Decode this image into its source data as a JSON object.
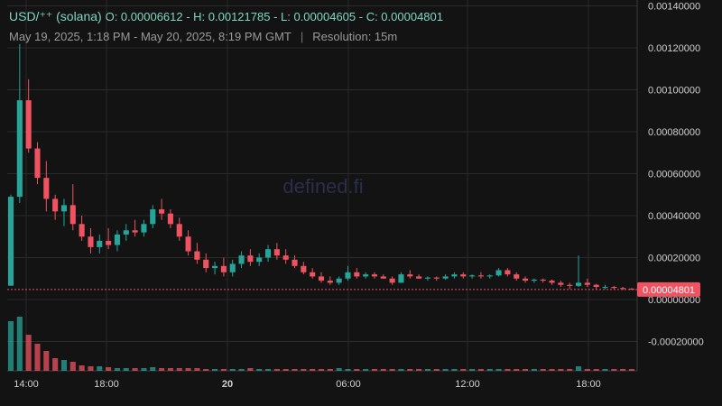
{
  "header": {
    "symbol": "USD/⁺⁺ (solana)",
    "ohlc": "O: 0.00006612 - H: 0.00121785 - L: 0.00004605 - C: 0.00004801",
    "date_range": "May 19, 2025, 1:18 PM - May 20, 2025, 8:19 PM GMT",
    "separator": "|",
    "resolution": "Resolution: 15m"
  },
  "watermark": "defined.fi",
  "colors": {
    "up": "#26a69a",
    "down": "#ef5361",
    "background": "#131313",
    "grid": "#2a2a2a",
    "axis_text": "#d0d0d0",
    "price_label_bg": "#ef5361"
  },
  "chart_data": {
    "type": "candlestick",
    "x_ticks": [
      "14:00",
      "18:00",
      "20",
      "06:00",
      "12:00",
      "18:00"
    ],
    "y_ticks": [
      "0.00140000",
      "0.00120000",
      "0.00100000",
      "0.00080000",
      "0.00060000",
      "0.00040000",
      "0.00020000",
      "0.00000000",
      "-0.00020000"
    ],
    "ylim": [
      -0.0003,
      0.00145
    ],
    "current_price": 4.801e-05,
    "current_price_label": "0.00004801",
    "open": 6.612e-05,
    "high": 0.00121785,
    "low": 4.605e-05,
    "close": 4.801e-05,
    "resolution_minutes": 15,
    "start": "2025-05-19 13:18",
    "end": "2025-05-20 20:19",
    "candles_ohlc": [
      [
        6.6e-05,
        0.0005,
        6.6e-05,
        0.00049
      ],
      [
        0.00049,
        0.00121785,
        0.00046,
        0.00095
      ],
      [
        0.00095,
        0.00105,
        0.0007,
        0.00072
      ],
      [
        0.00072,
        0.00075,
        0.00055,
        0.00058
      ],
      [
        0.00058,
        0.00066,
        0.00042,
        0.00048
      ],
      [
        0.00048,
        0.0005,
        0.00038,
        0.00042
      ],
      [
        0.00042,
        0.00048,
        0.00035,
        0.00045
      ],
      [
        0.00045,
        0.00055,
        0.00033,
        0.00036
      ],
      [
        0.00036,
        0.0004,
        0.00028,
        0.0003
      ],
      [
        0.0003,
        0.00034,
        0.00022,
        0.00025
      ],
      [
        0.00025,
        0.00031,
        0.00022,
        0.00028
      ],
      [
        0.00028,
        0.00034,
        0.00024,
        0.00026
      ],
      [
        0.00026,
        0.00033,
        0.00023,
        0.00031
      ],
      [
        0.00031,
        0.00036,
        0.00028,
        0.00033
      ],
      [
        0.00033,
        0.00038,
        0.0003,
        0.00032
      ],
      [
        0.00032,
        0.00038,
        0.0003,
        0.00036
      ],
      [
        0.00036,
        0.00045,
        0.00034,
        0.00043
      ],
      [
        0.00043,
        0.00048,
        0.00038,
        0.00041
      ],
      [
        0.00041,
        0.00043,
        0.00034,
        0.00036
      ],
      [
        0.00036,
        0.00039,
        0.00028,
        0.0003
      ],
      [
        0.0003,
        0.00033,
        0.00021,
        0.00023
      ],
      [
        0.00023,
        0.00027,
        0.00017,
        0.00019
      ],
      [
        0.00019,
        0.00022,
        0.00013,
        0.00015
      ],
      [
        0.00015,
        0.00018,
        0.00012,
        0.00016
      ],
      [
        0.00016,
        0.0002,
        0.00011,
        0.00013
      ],
      [
        0.00013,
        0.00019,
        0.00011,
        0.00017
      ],
      [
        0.00017,
        0.00023,
        0.00015,
        0.00021
      ],
      [
        0.00021,
        0.00024,
        0.00016,
        0.00018
      ],
      [
        0.00018,
        0.00022,
        0.00016,
        0.0002
      ],
      [
        0.0002,
        0.00026,
        0.00018,
        0.00024
      ],
      [
        0.00024,
        0.00027,
        0.00019,
        0.00021
      ],
      [
        0.00021,
        0.00024,
        0.00017,
        0.00019
      ],
      [
        0.00019,
        0.00021,
        0.00015,
        0.00016
      ],
      [
        0.00016,
        0.00018,
        0.00012,
        0.00013
      ],
      [
        0.00013,
        0.00015,
        0.0001,
        0.00011
      ],
      [
        0.00011,
        0.00013,
        8e-05,
        9e-05
      ],
      [
        9e-05,
        0.00011,
        7e-05,
        8e-05
      ],
      [
        8e-05,
        0.00011,
        7e-05,
        0.0001
      ],
      [
        0.0001,
        0.00016,
        9e-05,
        0.00013
      ],
      [
        0.00013,
        0.00015,
        0.0001,
        0.00011
      ],
      [
        0.00011,
        0.00013,
        0.0001,
        0.00012
      ],
      [
        0.00012,
        0.00013,
        0.0001,
        0.00011
      ],
      [
        0.00011,
        0.00012,
        0.0001,
        0.0001
      ],
      [
        0.0001,
        0.00011,
        7e-05,
        8e-05
      ],
      [
        8e-05,
        0.00013,
        8e-05,
        0.00012
      ],
      [
        0.00012,
        0.00014,
        0.0001,
        0.00011
      ],
      [
        0.00011,
        0.00012,
        0.0001,
        0.0001
      ],
      [
        0.0001,
        0.00011,
        9e-05,
        0.000105
      ],
      [
        0.000105,
        0.00011,
        9e-05,
        0.0001
      ],
      [
        0.0001,
        0.00012,
        9.5e-05,
        0.00011
      ],
      [
        0.00011,
        0.00013,
        0.0001,
        0.00012
      ],
      [
        0.00012,
        0.00013,
        0.0001,
        0.00011
      ],
      [
        0.00011,
        0.00012,
        0.0001,
        0.000115
      ],
      [
        0.000115,
        0.00013,
        0.0001,
        0.00011
      ],
      [
        0.00011,
        0.00012,
        0.0001,
        0.000115
      ],
      [
        0.000115,
        0.00015,
        0.00011,
        0.00014
      ],
      [
        0.00014,
        0.00015,
        0.00011,
        0.00012
      ],
      [
        0.00012,
        0.00013,
        9e-05,
        0.0001
      ],
      [
        0.0001,
        0.00011,
        8e-05,
        9e-05
      ],
      [
        9e-05,
        0.0001,
        8e-05,
        9.5e-05
      ],
      [
        9.5e-05,
        0.0001,
        8e-05,
        9e-05
      ],
      [
        9e-05,
        9.5e-05,
        7e-05,
        8e-05
      ],
      [
        8e-05,
        9e-05,
        6e-05,
        7e-05
      ],
      [
        7e-05,
        8e-05,
        5e-05,
        6.5e-05
      ],
      [
        6.5e-05,
        0.00021,
        6e-05,
        8e-05
      ],
      [
        8e-05,
        0.0001,
        6e-05,
        7e-05
      ],
      [
        7e-05,
        7.5e-05,
        5e-05,
        6e-05
      ],
      [
        6e-05,
        7e-05,
        5e-05,
        6e-05
      ],
      [
        6e-05,
        6.5e-05,
        5e-05,
        5.5e-05
      ],
      [
        5.5e-05,
        6e-05,
        4.6e-05,
        5.2e-05
      ],
      [
        5.2e-05,
        5.5e-05,
        4.6e-05,
        4.801e-05
      ]
    ],
    "volumes": [
      0.55,
      0.6,
      0.4,
      0.3,
      0.22,
      0.14,
      0.12,
      0.1,
      0.06,
      0.05,
      0.05,
      0.04,
      0.03,
      0.03,
      0.03,
      0.03,
      0.04,
      0.03,
      0.03,
      0.03,
      0.03,
      0.03,
      0.02,
      0.02,
      0.02,
      0.02,
      0.02,
      0.03,
      0.02,
      0.02,
      0.02,
      0.02,
      0.02,
      0.02,
      0.02,
      0.02,
      0.02,
      0.03,
      0.02,
      0.02,
      0.02,
      0.02,
      0.02,
      0.02,
      0.02,
      0.02,
      0.02,
      0.02,
      0.02,
      0.02,
      0.02,
      0.02,
      0.02,
      0.02,
      0.02,
      0.02,
      0.02,
      0.02,
      0.02,
      0.02,
      0.02,
      0.02,
      0.02,
      0.02,
      0.05,
      0.02,
      0.02,
      0.02,
      0.02,
      0.02,
      0.02
    ]
  }
}
